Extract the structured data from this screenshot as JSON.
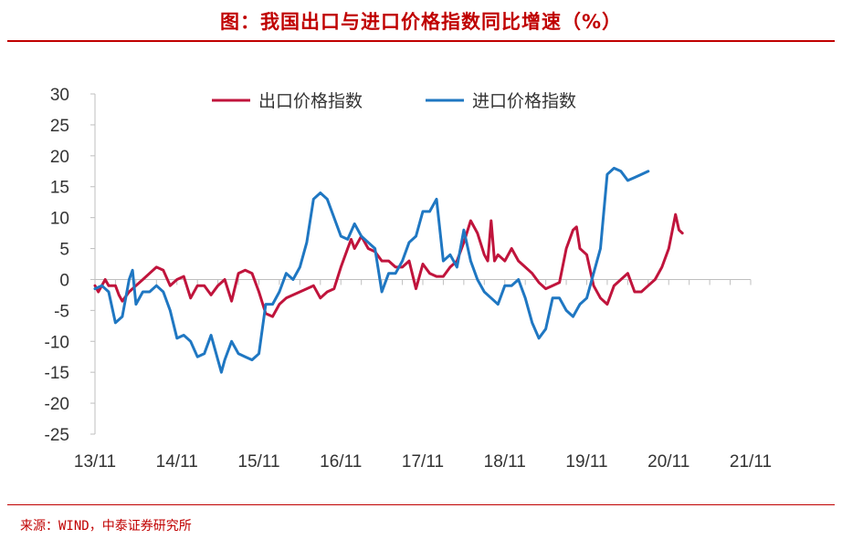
{
  "title": "图：我国出口与进口价格指数同比增速（%）",
  "source": "来源：WIND，中泰证券研究所",
  "colors": {
    "title": "#c00000",
    "export": "#c0143c",
    "import": "#1f77c2",
    "axis": "#bfbfbf",
    "text": "#333333"
  },
  "chart_data": {
    "type": "line",
    "title": "图：我国出口与进口价格指数同比增速（%）",
    "xlabel": "",
    "ylabel": "",
    "ylim": [
      -25,
      30
    ],
    "yticks": [
      30,
      25,
      20,
      15,
      10,
      5,
      0,
      -5,
      -10,
      -15,
      -20,
      -25
    ],
    "xlim": [
      0,
      96
    ],
    "xticks": [
      {
        "label": "13/11",
        "x": 0
      },
      {
        "label": "14/11",
        "x": 12
      },
      {
        "label": "15/11",
        "x": 24
      },
      {
        "label": "16/11",
        "x": 36
      },
      {
        "label": "17/11",
        "x": 48
      },
      {
        "label": "18/11",
        "x": 60
      },
      {
        "label": "19/11",
        "x": 72
      },
      {
        "label": "20/11",
        "x": 84
      },
      {
        "label": "21/11",
        "x": 96
      }
    ],
    "grid": false,
    "legend_position": "top",
    "series": [
      {
        "name": "出口价格指数",
        "values": [
          [
            0,
            -1
          ],
          [
            0.5,
            -2
          ],
          [
            1,
            -1
          ],
          [
            1.5,
            0
          ],
          [
            2,
            -1
          ],
          [
            3,
            -1
          ],
          [
            3.5,
            -2.5
          ],
          [
            4,
            -3.5
          ],
          [
            5,
            -2
          ],
          [
            6,
            -1
          ],
          [
            7,
            0
          ],
          [
            8,
            1
          ],
          [
            9,
            2
          ],
          [
            10,
            1.5
          ],
          [
            11,
            -1
          ],
          [
            12,
            0
          ],
          [
            13,
            0.5
          ],
          [
            14,
            -3
          ],
          [
            15,
            -1
          ],
          [
            16,
            -1
          ],
          [
            17,
            -2.5
          ],
          [
            18,
            -1
          ],
          [
            19,
            0
          ],
          [
            20,
            -3.5
          ],
          [
            21,
            1
          ],
          [
            22,
            1.5
          ],
          [
            23,
            1
          ],
          [
            24,
            -2
          ],
          [
            25,
            -5.5
          ],
          [
            26,
            -6
          ],
          [
            27,
            -4
          ],
          [
            28,
            -3
          ],
          [
            29,
            -2.5
          ],
          [
            30,
            -2
          ],
          [
            31,
            -1.5
          ],
          [
            32,
            -1
          ],
          [
            33,
            -3
          ],
          [
            34,
            -2
          ],
          [
            35,
            -1.5
          ],
          [
            36,
            2
          ],
          [
            37,
            5
          ],
          [
            37.5,
            6.5
          ],
          [
            38,
            5
          ],
          [
            39,
            7
          ],
          [
            40,
            5
          ],
          [
            41,
            4.5
          ],
          [
            42,
            3
          ],
          [
            43,
            3
          ],
          [
            44,
            2
          ],
          [
            45,
            2
          ],
          [
            46,
            3
          ],
          [
            47,
            -1.5
          ],
          [
            48,
            2.5
          ],
          [
            49,
            1
          ],
          [
            50,
            0.5
          ],
          [
            51,
            0.5
          ],
          [
            52,
            2
          ],
          [
            53,
            3
          ],
          [
            54,
            6
          ],
          [
            55,
            9.5
          ],
          [
            56,
            7.5
          ],
          [
            57,
            4
          ],
          [
            57.5,
            3
          ],
          [
            58,
            9.5
          ],
          [
            58.5,
            3
          ],
          [
            59,
            4
          ],
          [
            60,
            3
          ],
          [
            61,
            5
          ],
          [
            62,
            3
          ],
          [
            63,
            2
          ],
          [
            64,
            1
          ],
          [
            65,
            -0.5
          ],
          [
            66,
            -1.5
          ],
          [
            67,
            -1
          ],
          [
            68,
            -0.5
          ],
          [
            69,
            5
          ],
          [
            70,
            8
          ],
          [
            70.5,
            8.5
          ],
          [
            71,
            5
          ],
          [
            72,
            4
          ],
          [
            73,
            -1
          ],
          [
            74,
            -3
          ],
          [
            75,
            -4
          ],
          [
            76,
            -1
          ],
          [
            77,
            0
          ],
          [
            78,
            1
          ],
          [
            79,
            -2
          ],
          [
            80,
            -2
          ],
          [
            81,
            -1
          ],
          [
            82,
            0
          ],
          [
            83,
            2
          ],
          [
            84,
            5
          ],
          [
            85,
            10.5
          ],
          [
            85.5,
            8
          ],
          [
            86,
            7.5
          ]
        ]
      },
      {
        "name": "进口价格指数",
        "values": [
          [
            0,
            -1.5
          ],
          [
            1,
            -1
          ],
          [
            2,
            -2
          ],
          [
            3,
            -7
          ],
          [
            4,
            -6
          ],
          [
            5,
            0
          ],
          [
            5.5,
            1.5
          ],
          [
            6,
            -4
          ],
          [
            7,
            -2
          ],
          [
            8,
            -2
          ],
          [
            9,
            -1
          ],
          [
            10,
            -2
          ],
          [
            11,
            -5
          ],
          [
            12,
            -9.5
          ],
          [
            13,
            -9
          ],
          [
            14,
            -10
          ],
          [
            15,
            -12.5
          ],
          [
            16,
            -12
          ],
          [
            17,
            -9
          ],
          [
            18,
            -13
          ],
          [
            18.5,
            -15
          ],
          [
            19,
            -13
          ],
          [
            20,
            -10
          ],
          [
            21,
            -12
          ],
          [
            22,
            -12.5
          ],
          [
            23,
            -13
          ],
          [
            24,
            -12
          ],
          [
            25,
            -4
          ],
          [
            26,
            -4
          ],
          [
            27,
            -2
          ],
          [
            28,
            1
          ],
          [
            29,
            0
          ],
          [
            30,
            2
          ],
          [
            31,
            6
          ],
          [
            32,
            13
          ],
          [
            33,
            14
          ],
          [
            34,
            13
          ],
          [
            35,
            10
          ],
          [
            36,
            7
          ],
          [
            37,
            6.5
          ],
          [
            38,
            9
          ],
          [
            39,
            7
          ],
          [
            40,
            6
          ],
          [
            41,
            5
          ],
          [
            42,
            -2
          ],
          [
            43,
            1
          ],
          [
            44,
            1
          ],
          [
            45,
            3
          ],
          [
            46,
            6
          ],
          [
            47,
            7
          ],
          [
            48,
            11
          ],
          [
            49,
            11
          ],
          [
            50,
            13
          ],
          [
            51,
            3
          ],
          [
            52,
            4
          ],
          [
            53,
            2
          ],
          [
            54,
            8
          ],
          [
            55,
            3
          ],
          [
            56,
            0
          ],
          [
            57,
            -2
          ],
          [
            58,
            -3
          ],
          [
            59,
            -4
          ],
          [
            60,
            -1
          ],
          [
            61,
            -1
          ],
          [
            62,
            0
          ],
          [
            63,
            -3
          ],
          [
            64,
            -7
          ],
          [
            65,
            -9.5
          ],
          [
            66,
            -8
          ],
          [
            67,
            -3
          ],
          [
            68,
            -3
          ],
          [
            69,
            -5
          ],
          [
            70,
            -6
          ],
          [
            71,
            -4
          ],
          [
            72,
            -3
          ],
          [
            73,
            1
          ],
          [
            74,
            5
          ],
          [
            75,
            17
          ],
          [
            76,
            18
          ],
          [
            77,
            17.5
          ],
          [
            78,
            16
          ],
          [
            79,
            16.5
          ],
          [
            80,
            17
          ],
          [
            81,
            17.5
          ]
        ]
      }
    ]
  }
}
